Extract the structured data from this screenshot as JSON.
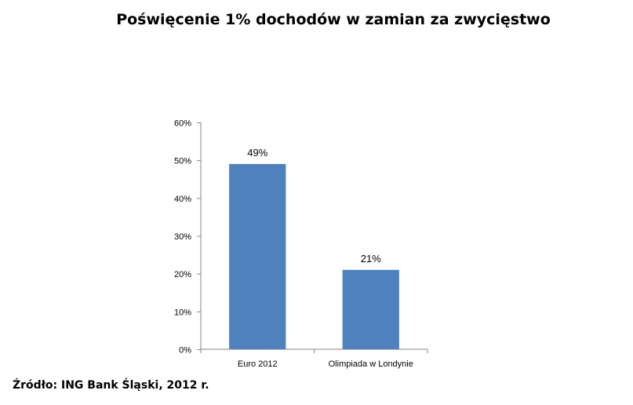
{
  "title": "Poświęcenie 1% dochodów  w zamian za zwycięstwo",
  "source": "Źródło: ING Bank Śląski, 2012 r.",
  "chart_data": {
    "type": "bar",
    "title": "Poświęcenie 1% dochodów  w zamian za zwycięstwo",
    "categories": [
      "Euro 2012",
      "Olimpiada w Londynie"
    ],
    "values": [
      49,
      21
    ],
    "data_labels": [
      "49%",
      "21%"
    ],
    "ylim": [
      0,
      60
    ],
    "yticks": [
      0,
      10,
      20,
      30,
      40,
      50,
      60
    ],
    "ytick_labels": [
      "0%",
      "10%",
      "20%",
      "30%",
      "40%",
      "50%",
      "60%"
    ],
    "xlabel": "",
    "ylabel": "",
    "grid": false,
    "legend": "none",
    "bar_color": "#4f81bd"
  }
}
